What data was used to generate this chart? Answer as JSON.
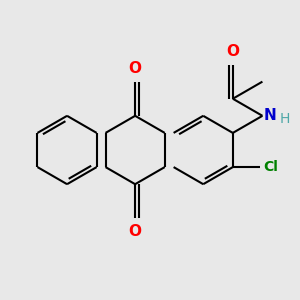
{
  "bg_color": "#e8e8e8",
  "bond_color": "#000000",
  "o_color": "#ff0000",
  "n_color": "#0000cc",
  "cl_color": "#008000",
  "h_color": "#4fa8a8",
  "bond_width": 1.5,
  "figsize": [
    3.0,
    3.0
  ],
  "dpi": 100,
  "xlim": [
    0,
    10
  ],
  "ylim": [
    0,
    10
  ]
}
